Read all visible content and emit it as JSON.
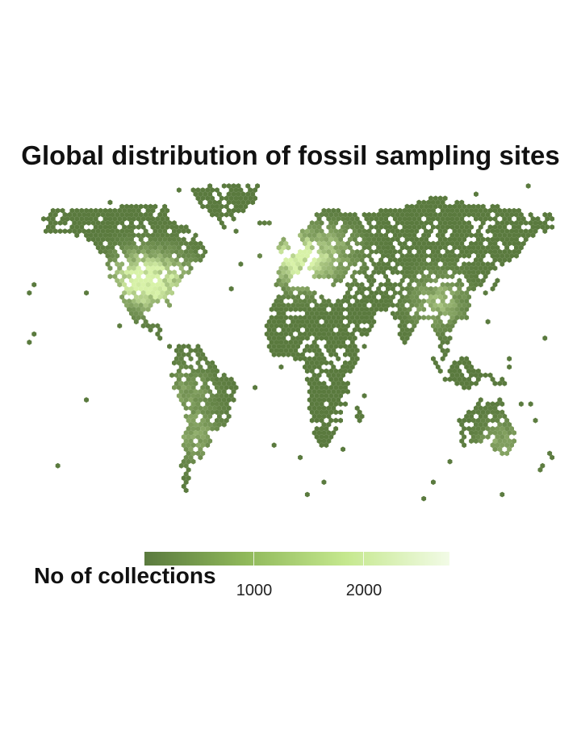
{
  "title": "Global distribution of fossil sampling sites",
  "legend": {
    "title": "No of collections",
    "ticks": [
      {
        "value": 1000,
        "label": "1000"
      },
      {
        "value": 2000,
        "label": "2000"
      }
    ],
    "range": [
      1,
      2800
    ],
    "colors": [
      "#5a7a3e",
      "#8fb85a",
      "#c5e88e",
      "#f2fbe6"
    ]
  },
  "map": {
    "cell_color_low": "#5a7a3e",
    "cell_color_high": "#d8f2a8"
  }
}
